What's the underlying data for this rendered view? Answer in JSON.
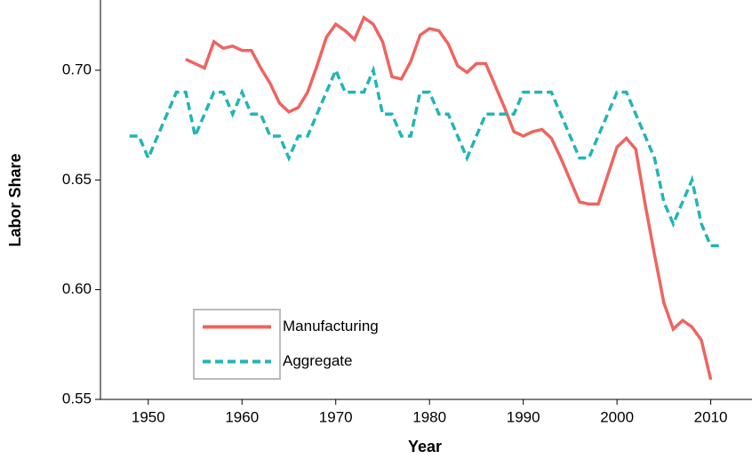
{
  "chart_data": {
    "type": "line",
    "x_label": "Year",
    "y_label": "Labor Share",
    "xlim": [
      1944.9,
      2014.4
    ],
    "ylim": [
      0.55,
      0.732
    ],
    "xticks": [
      1950,
      1960,
      1970,
      1980,
      1990,
      2000,
      2010
    ],
    "yticks": [
      0.55,
      {
        "value": 0.6,
        "label": "0.60"
      },
      0.65,
      {
        "value": 0.7,
        "label": "0.70"
      }
    ],
    "legend": "bottom-left",
    "series": [
      {
        "name": "Manufacturing",
        "color": "#ef6460",
        "linestyle": "solid",
        "x": [
          1954,
          1955,
          1956,
          1957,
          1958,
          1959,
          1960,
          1961,
          1962,
          1963,
          1964,
          1965,
          1966,
          1967,
          1968,
          1969,
          1970,
          1971,
          1972,
          1973,
          1974,
          1975,
          1976,
          1977,
          1978,
          1979,
          1980,
          1981,
          1982,
          1983,
          1984,
          1985,
          1986,
          1987,
          1988,
          1989,
          1990,
          1991,
          1992,
          1993,
          1994,
          1995,
          1996,
          1997,
          1998,
          1999,
          2000,
          2001,
          2002,
          2003,
          2004,
          2005,
          2006,
          2007,
          2008,
          2009,
          2010
        ],
        "values": [
          0.705,
          0.703,
          0.701,
          0.713,
          0.71,
          0.711,
          0.709,
          0.709,
          0.701,
          0.694,
          0.685,
          0.681,
          0.683,
          0.69,
          0.702,
          0.715,
          0.721,
          0.718,
          0.714,
          0.724,
          0.721,
          0.713,
          0.697,
          0.696,
          0.704,
          0.716,
          0.719,
          0.718,
          0.712,
          0.702,
          0.699,
          0.703,
          0.703,
          0.693,
          0.683,
          0.672,
          0.67,
          0.672,
          0.673,
          0.669,
          0.66,
          0.65,
          0.64,
          0.639,
          0.639,
          0.652,
          0.665,
          0.669,
          0.664,
          0.639,
          0.616,
          0.594,
          0.582,
          0.586,
          0.583,
          0.577,
          0.559
        ]
      },
      {
        "name": "Aggregate",
        "color": "#22b5b5",
        "linestyle": "dashed",
        "x": [
          1948,
          1949,
          1950,
          1951,
          1952,
          1953,
          1954,
          1955,
          1956,
          1957,
          1958,
          1959,
          1960,
          1961,
          1962,
          1963,
          1964,
          1965,
          1966,
          1967,
          1968,
          1969,
          1970,
          1971,
          1972,
          1973,
          1974,
          1975,
          1976,
          1977,
          1978,
          1979,
          1980,
          1981,
          1982,
          1983,
          1984,
          1985,
          1986,
          1987,
          1988,
          1989,
          1990,
          1991,
          1992,
          1993,
          1994,
          1995,
          1996,
          1997,
          1998,
          1999,
          2000,
          2001,
          2002,
          2003,
          2004,
          2005,
          2006,
          2007,
          2008,
          2009,
          2010,
          2011
        ],
        "values": [
          0.67,
          0.67,
          0.66,
          0.67,
          0.68,
          0.69,
          0.69,
          0.67,
          0.68,
          0.69,
          0.69,
          0.68,
          0.69,
          0.68,
          0.68,
          0.67,
          0.67,
          0.66,
          0.67,
          0.67,
          0.68,
          0.69,
          0.7,
          0.69,
          0.69,
          0.69,
          0.7,
          0.68,
          0.68,
          0.67,
          0.67,
          0.69,
          0.69,
          0.68,
          0.68,
          0.67,
          0.66,
          0.67,
          0.68,
          0.68,
          0.68,
          0.68,
          0.69,
          0.69,
          0.69,
          0.69,
          0.68,
          0.67,
          0.66,
          0.66,
          0.67,
          0.68,
          0.69,
          0.69,
          0.68,
          0.67,
          0.66,
          0.64,
          0.63,
          0.64,
          0.65,
          0.63,
          0.62,
          0.62
        ]
      }
    ]
  }
}
